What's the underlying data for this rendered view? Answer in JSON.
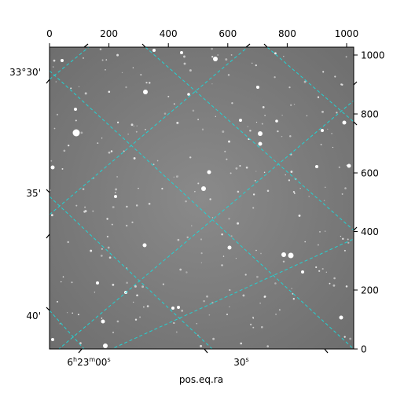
{
  "figure": {
    "xlabel": "pos.eq.ra",
    "pixel_axis": {
      "x_ticks": [
        "0",
        "200",
        "400",
        "600",
        "800",
        "1000"
      ],
      "y_ticks": [
        "0",
        "200",
        "400",
        "600",
        "800",
        "1000"
      ]
    },
    "world_axis": {
      "ra_ticks": [
        {
          "h": "6",
          "m": "23",
          "s": "00",
          "type": "full"
        },
        {
          "s": "30",
          "type": "seconds"
        }
      ],
      "dec_ticks": [
        "33°30'",
        "35'",
        "40'"
      ]
    },
    "colors": {
      "grid": "#22d3d3",
      "sky_background": "#808080",
      "frame": "#000000"
    }
  }
}
